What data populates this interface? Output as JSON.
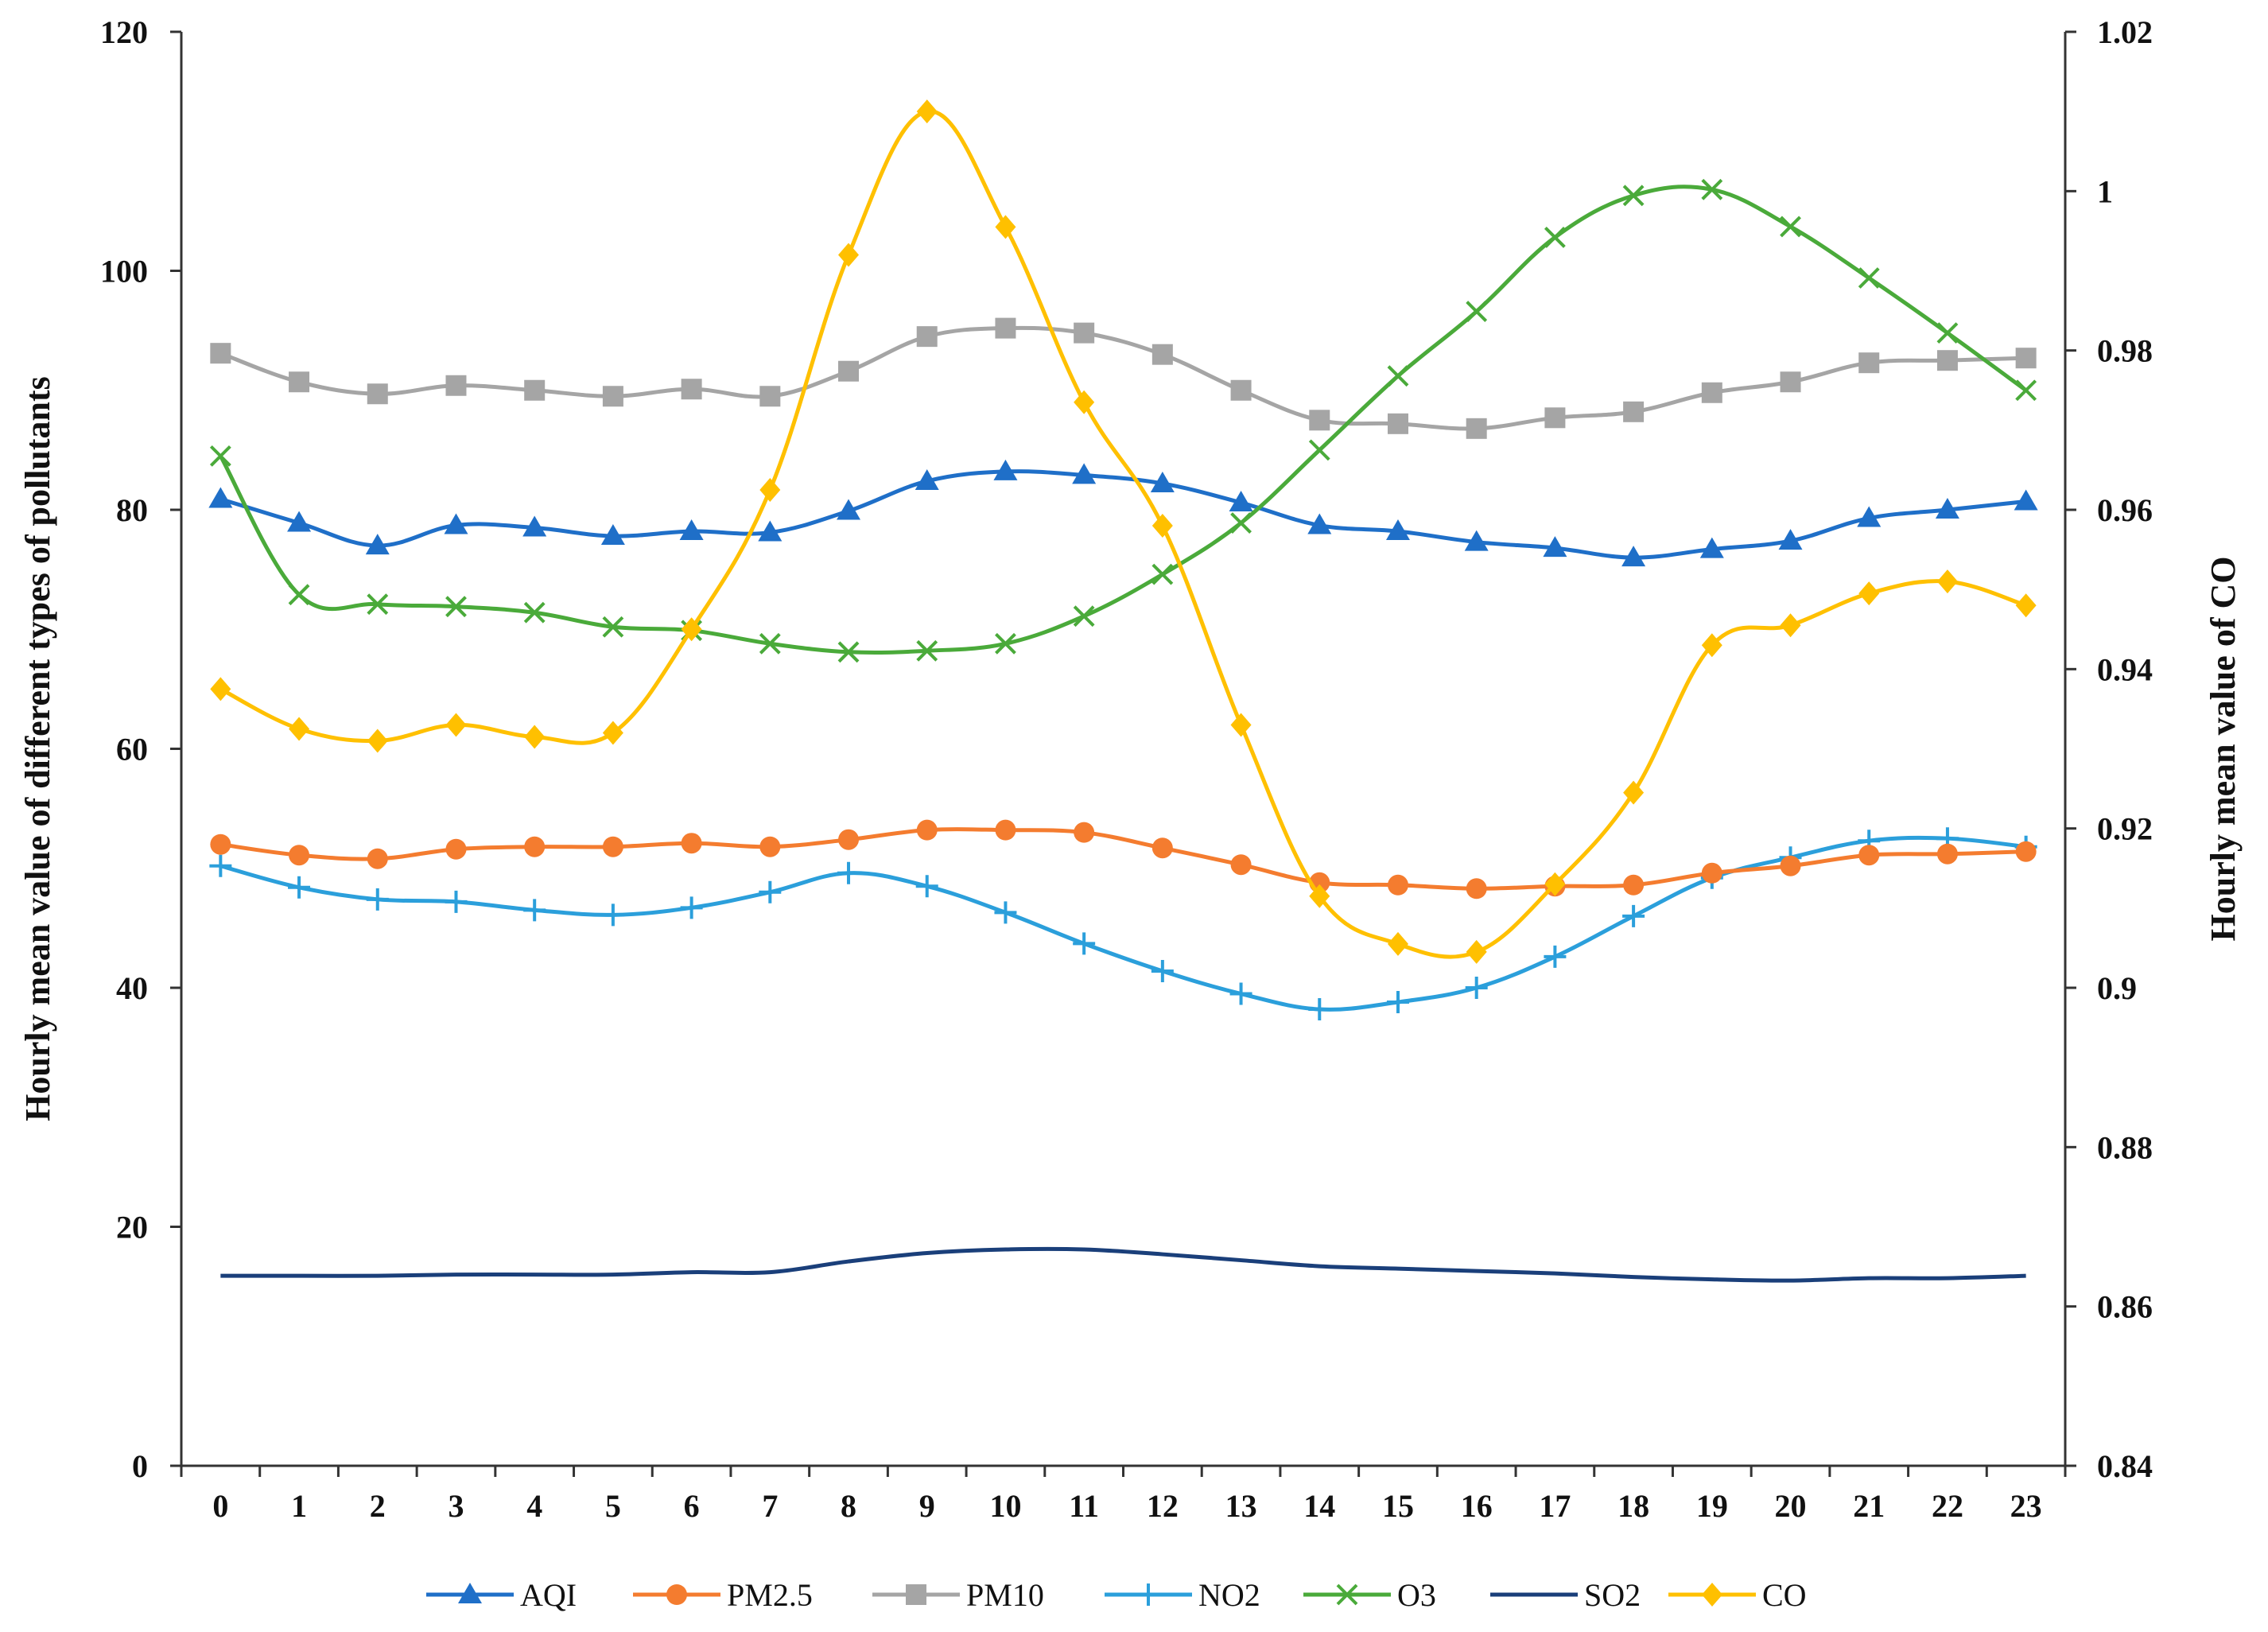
{
  "chart_data": {
    "type": "line",
    "categories": [
      "0",
      "1",
      "2",
      "3",
      "4",
      "5",
      "6",
      "7",
      "8",
      "9",
      "10",
      "11",
      "12",
      "13",
      "14",
      "15",
      "16",
      "17",
      "18",
      "19",
      "20",
      "21",
      "22",
      "23"
    ],
    "ylabel": "Hourly mean value of different types of pollutants",
    "y2label": "Hourly mean value of CO",
    "ylim": [
      0,
      120
    ],
    "y2lim": [
      0.84,
      1.02
    ],
    "yticks": [
      "0",
      "20",
      "40",
      "60",
      "80",
      "100",
      "120"
    ],
    "y2ticks": [
      "0.84",
      "0.86",
      "0.88",
      "0.9",
      "0.92",
      "0.94",
      "0.96",
      "0.98",
      "1",
      "1.02"
    ],
    "grid": false,
    "legend_position": "bottom",
    "series": [
      {
        "name": "AQI",
        "axis": "left",
        "color": "#1F6FC8",
        "marker": "triangle",
        "values": [
          80.9,
          78.9,
          77.0,
          78.7,
          78.5,
          77.8,
          78.2,
          78.1,
          79.9,
          82.4,
          83.2,
          82.9,
          82.2,
          80.6,
          78.7,
          78.2,
          77.3,
          76.8,
          76.0,
          76.7,
          77.4,
          79.3,
          80.0,
          80.7
        ]
      },
      {
        "name": "PM2.5",
        "axis": "left",
        "color": "#F47C2F",
        "marker": "circle",
        "values": [
          52.0,
          51.1,
          50.8,
          51.6,
          51.8,
          51.8,
          52.1,
          51.8,
          52.4,
          53.2,
          53.2,
          53.0,
          51.7,
          50.3,
          48.8,
          48.6,
          48.3,
          48.5,
          48.6,
          49.6,
          50.2,
          51.1,
          51.2,
          51.4
        ]
      },
      {
        "name": "PM10",
        "axis": "left",
        "color": "#A5A5A5",
        "marker": "square",
        "values": [
          93.1,
          90.7,
          89.7,
          90.4,
          90.0,
          89.5,
          90.1,
          89.5,
          91.6,
          94.5,
          95.2,
          94.8,
          93.0,
          90.0,
          87.5,
          87.2,
          86.8,
          87.7,
          88.2,
          89.8,
          90.7,
          92.3,
          92.5,
          92.7
        ]
      },
      {
        "name": "NO2",
        "axis": "left",
        "color": "#2B9FDB",
        "marker": "plus",
        "values": [
          50.2,
          48.4,
          47.4,
          47.2,
          46.5,
          46.1,
          46.7,
          48.0,
          49.6,
          48.5,
          46.3,
          43.7,
          41.4,
          39.5,
          38.2,
          38.8,
          40.0,
          42.6,
          46.0,
          49.2,
          50.9,
          52.3,
          52.5,
          51.8
        ]
      },
      {
        "name": "O3",
        "axis": "left",
        "color": "#4AAA3A",
        "marker": "x",
        "values": [
          84.5,
          72.9,
          72.1,
          71.9,
          71.4,
          70.2,
          69.9,
          68.8,
          68.1,
          68.2,
          68.8,
          71.1,
          74.6,
          78.9,
          85.0,
          91.2,
          96.6,
          102.8,
          106.3,
          106.8,
          103.7,
          99.4,
          94.8,
          90.0
        ]
      },
      {
        "name": "SO2",
        "axis": "left",
        "color": "#1A3F7A",
        "marker": "none",
        "values": [
          15.9,
          15.9,
          15.9,
          16.0,
          16.0,
          16.0,
          16.2,
          16.2,
          17.1,
          17.8,
          18.1,
          18.1,
          17.7,
          17.2,
          16.7,
          16.5,
          16.3,
          16.1,
          15.8,
          15.6,
          15.5,
          15.7,
          15.7,
          15.9
        ]
      },
      {
        "name": "CO",
        "axis": "right",
        "color": "#FFC000",
        "marker": "diamond",
        "values": [
          0.9375,
          0.9325,
          0.931,
          0.933,
          0.9315,
          0.932,
          0.945,
          0.9625,
          0.992,
          1.01,
          0.9955,
          0.9735,
          0.958,
          0.933,
          0.9115,
          0.9055,
          0.9045,
          0.913,
          0.9245,
          0.943,
          0.9455,
          0.9495,
          0.951,
          0.948
        ]
      }
    ]
  }
}
